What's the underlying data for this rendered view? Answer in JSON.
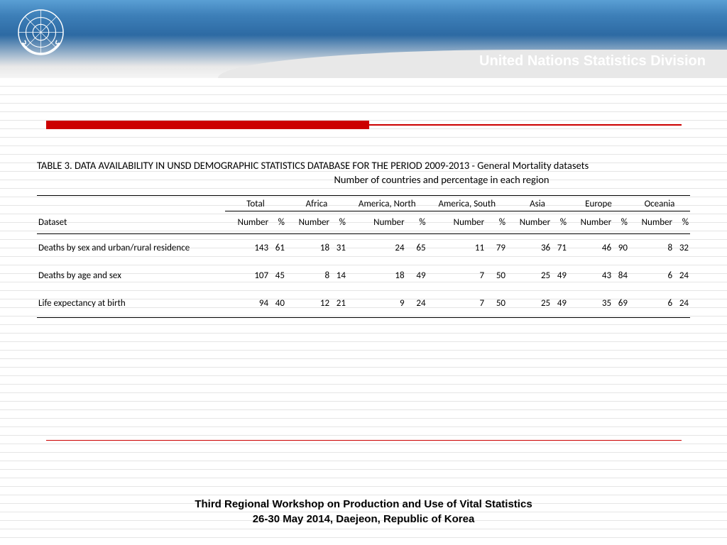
{
  "header": {
    "org_title": "United Nations Statistics Division"
  },
  "table": {
    "title": "TABLE 3. DATA AVAILABILITY IN UNSD DEMOGRAPHIC STATISTICS DATABASE FOR THE PERIOD 2009-2013 - General Mortality datasets",
    "subtitle": "Number of countries and percentage in each region",
    "dataset_label": "Dataset",
    "number_label": "Number",
    "percent_label": "%",
    "regions": [
      "Total",
      "Africa",
      "America, North",
      "America, South",
      "Asia",
      "Europe",
      "Oceania"
    ],
    "rows": [
      {
        "dataset": "Deaths by sex and urban/rural residence",
        "values": [
          143,
          61,
          18,
          31,
          24,
          65,
          11,
          79,
          36,
          71,
          46,
          90,
          8,
          32
        ]
      },
      {
        "dataset": "Deaths by age and sex",
        "values": [
          107,
          45,
          8,
          14,
          18,
          49,
          7,
          50,
          25,
          49,
          43,
          84,
          6,
          24
        ]
      },
      {
        "dataset": "Life expectancy at birth",
        "values": [
          94,
          40,
          12,
          21,
          9,
          24,
          7,
          50,
          25,
          49,
          35,
          69,
          6,
          24
        ]
      }
    ]
  },
  "footer": {
    "line1": "Third Regional Workshop on Production and Use of Vital Statistics",
    "line2": "26-30 May 2014, Daejeon, Republic of Korea"
  },
  "colors": {
    "red_accent": "#cc0000",
    "header_blue_top": "#5a9fd4",
    "header_blue_bottom": "#2d6aa3",
    "grey_band": "#e8e8e8",
    "line_grey": "#e5e5e5"
  }
}
